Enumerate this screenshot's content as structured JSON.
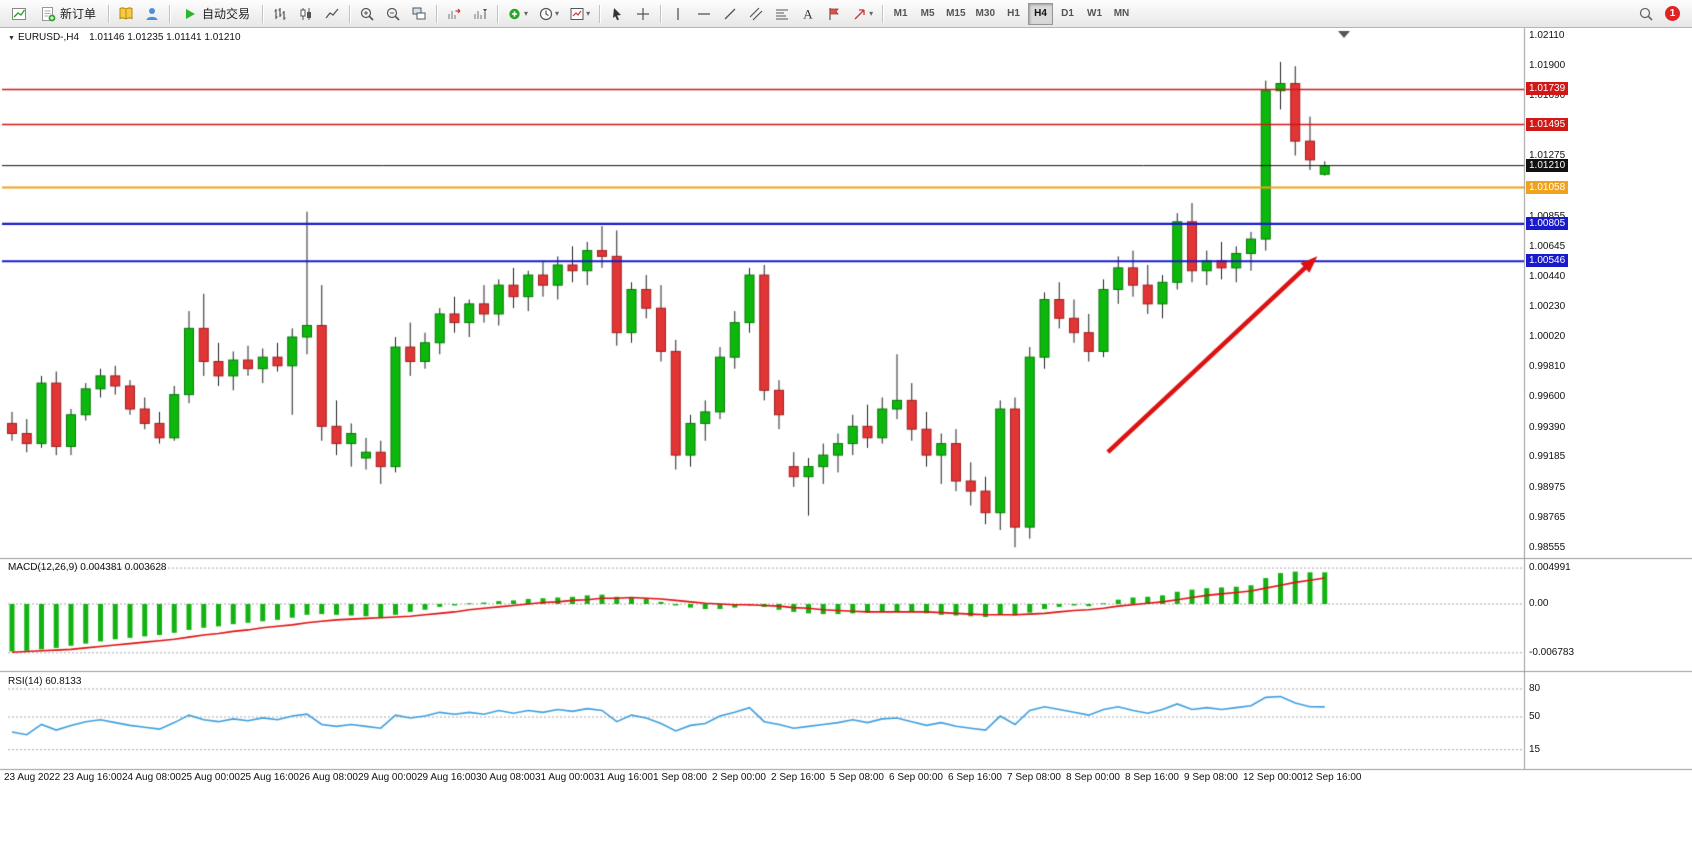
{
  "toolbar": {
    "new_order_label": "新订单",
    "auto_trading_label": "自动交易",
    "timeframes": [
      "M1",
      "M5",
      "M15",
      "M30",
      "H1",
      "H4",
      "D1",
      "W1",
      "MN"
    ],
    "active_timeframe": "H4",
    "notification_badge": "1",
    "icons": [
      "new-chart-icon",
      "new-order-icon",
      "book-icon",
      "user-icon",
      "autotrading-play-icon",
      "bar-chart-icon",
      "candle-chart-icon",
      "line-chart-icon",
      "zoom-in-icon",
      "zoom-out-icon",
      "tile-windows-icon",
      "auto-scroll-icon",
      "chart-shift-icon",
      "indicators-icon",
      "periods-icon",
      "template-icon",
      "cursor-icon",
      "crosshair-icon",
      "vertical-line-icon",
      "horizontal-line-icon",
      "trendline-icon",
      "channel-icon",
      "fibonacci-icon",
      "text-icon",
      "label-icon",
      "arrows-icon",
      "search-icon"
    ]
  },
  "chart": {
    "symbol_title": "EURUSD-,H4",
    "ohlc_text": "1.01146 1.01235 1.01141 1.01210",
    "price_range": {
      "top": 1.0211,
      "bottom": 0.98555
    },
    "y_ticks": [
      "1.02110",
      "1.01900",
      "1.01690",
      "1.01275",
      "1.00855",
      "1.00645",
      "1.00440",
      "1.00230",
      "1.00020",
      "0.99810",
      "0.99600",
      "0.99390",
      "0.99185",
      "0.98975",
      "0.98765",
      "0.98555"
    ],
    "price_lines": [
      {
        "price": 1.01739,
        "label": "1.01739",
        "color": "#d01818",
        "width": 1.4
      },
      {
        "price": 1.01495,
        "label": "1.01495",
        "color": "#d01818",
        "width": 1.4
      },
      {
        "price": 1.0121,
        "label": "1.01210",
        "color": "#111111",
        "width": 1
      },
      {
        "price": 1.01058,
        "label": "1.01058",
        "color": "#efa21b",
        "width": 2.2
      },
      {
        "price": 1.00805,
        "label": "1.00805",
        "color": "#1a1acd",
        "width": 2.2
      },
      {
        "price": 1.00546,
        "label": "1.00546",
        "color": "#1a1acd",
        "width": 2.2
      }
    ],
    "x_labels": [
      "23 Aug 2022",
      "23 Aug 16:00",
      "24 Aug 08:00",
      "25 Aug 00:00",
      "25 Aug 16:00",
      "26 Aug 08:00",
      "29 Aug 00:00",
      "29 Aug 16:00",
      "30 Aug 08:00",
      "31 Aug 00:00",
      "31 Aug 16:00",
      "1 Sep 08:00",
      "2 Sep 00:00",
      "2 Sep 16:00",
      "5 Sep 08:00",
      "6 Sep 00:00",
      "6 Sep 16:00",
      "7 Sep 08:00",
      "8 Sep 00:00",
      "8 Sep 16:00",
      "9 Sep 08:00",
      "12 Sep 00:00",
      "12 Sep 16:00"
    ]
  },
  "chart_data": {
    "type": "candlestick",
    "symbol": "EURUSD-",
    "timeframe": "H4",
    "candles": [
      [
        0.9942,
        0.995,
        0.993,
        0.9935
      ],
      [
        0.9935,
        0.9945,
        0.9922,
        0.9928
      ],
      [
        0.9928,
        0.9975,
        0.9925,
        0.997
      ],
      [
        0.997,
        0.9978,
        0.992,
        0.9926
      ],
      [
        0.9926,
        0.9952,
        0.992,
        0.9948
      ],
      [
        0.9948,
        0.997,
        0.9944,
        0.9966
      ],
      [
        0.9966,
        0.998,
        0.996,
        0.9975
      ],
      [
        0.9975,
        0.9982,
        0.9962,
        0.9968
      ],
      [
        0.9968,
        0.9972,
        0.9948,
        0.9952
      ],
      [
        0.9952,
        0.996,
        0.9938,
        0.9942
      ],
      [
        0.9942,
        0.995,
        0.9928,
        0.9932
      ],
      [
        0.9932,
        0.9968,
        0.993,
        0.9962
      ],
      [
        0.9962,
        1.002,
        0.9956,
        1.0008
      ],
      [
        1.0008,
        1.0032,
        0.9975,
        0.9985
      ],
      [
        0.9985,
        0.9998,
        0.9968,
        0.9975
      ],
      [
        0.9975,
        0.9992,
        0.9965,
        0.9986
      ],
      [
        0.9986,
        0.9996,
        0.9975,
        0.998
      ],
      [
        0.998,
        0.9994,
        0.997,
        0.9988
      ],
      [
        0.9988,
        0.9998,
        0.9978,
        0.9982
      ],
      [
        0.9982,
        1.0008,
        0.9948,
        1.0002
      ],
      [
        1.0002,
        1.0089,
        0.999,
        1.001
      ],
      [
        1.001,
        1.0038,
        0.993,
        0.994
      ],
      [
        0.994,
        0.9958,
        0.992,
        0.9928
      ],
      [
        0.9928,
        0.9942,
        0.9912,
        0.9935
      ],
      [
        0.9918,
        0.9932,
        0.991,
        0.9922
      ],
      [
        0.9922,
        0.993,
        0.99,
        0.9912
      ],
      [
        0.9912,
        1.0002,
        0.9908,
        0.9995
      ],
      [
        0.9995,
        1.0012,
        0.9975,
        0.9985
      ],
      [
        0.9985,
        1.0005,
        0.998,
        0.9998
      ],
      [
        0.9998,
        1.0022,
        0.999,
        1.0018
      ],
      [
        1.0018,
        1.003,
        1.0005,
        1.0012
      ],
      [
        1.0012,
        1.0028,
        1.0002,
        1.0025
      ],
      [
        1.0025,
        1.0038,
        1.0012,
        1.0018
      ],
      [
        1.0018,
        1.0042,
        1.001,
        1.0038
      ],
      [
        1.0038,
        1.005,
        1.0022,
        1.003
      ],
      [
        1.003,
        1.0048,
        1.002,
        1.0045
      ],
      [
        1.0045,
        1.0055,
        1.003,
        1.0038
      ],
      [
        1.0038,
        1.0058,
        1.0028,
        1.0052
      ],
      [
        1.0052,
        1.0065,
        1.004,
        1.0048
      ],
      [
        1.0048,
        1.0068,
        1.0038,
        1.0062
      ],
      [
        1.0062,
        1.0079,
        1.005,
        1.0058
      ],
      [
        1.0058,
        1.0076,
        0.9996,
        1.0005
      ],
      [
        1.0005,
        1.004,
        0.9998,
        1.0035
      ],
      [
        1.0035,
        1.0045,
        1.0015,
        1.0022
      ],
      [
        1.0022,
        1.0038,
        0.9985,
        0.9992
      ],
      [
        0.9992,
        1.0,
        0.991,
        0.992
      ],
      [
        0.992,
        0.9948,
        0.9912,
        0.9942
      ],
      [
        0.9942,
        0.9958,
        0.993,
        0.995
      ],
      [
        0.995,
        0.9995,
        0.9945,
        0.9988
      ],
      [
        0.9988,
        1.002,
        0.998,
        1.0012
      ],
      [
        1.0012,
        1.005,
        1.0005,
        1.0045
      ],
      [
        1.0045,
        1.0052,
        0.9958,
        0.9965
      ],
      [
        0.9965,
        0.9972,
        0.9938,
        0.9948
      ],
      [
        0.9912,
        0.9922,
        0.9898,
        0.9905
      ],
      [
        0.9905,
        0.9918,
        0.9878,
        0.9912
      ],
      [
        0.9912,
        0.9928,
        0.99,
        0.992
      ],
      [
        0.992,
        0.9935,
        0.9908,
        0.9928
      ],
      [
        0.9928,
        0.9948,
        0.992,
        0.994
      ],
      [
        0.994,
        0.9955,
        0.9925,
        0.9932
      ],
      [
        0.9932,
        0.996,
        0.9928,
        0.9952
      ],
      [
        0.9952,
        0.999,
        0.9945,
        0.9958
      ],
      [
        0.9958,
        0.997,
        0.993,
        0.9938
      ],
      [
        0.9938,
        0.995,
        0.9912,
        0.992
      ],
      [
        0.992,
        0.9935,
        0.99,
        0.9928
      ],
      [
        0.9928,
        0.9938,
        0.9895,
        0.9902
      ],
      [
        0.9902,
        0.9915,
        0.9885,
        0.9895
      ],
      [
        0.9895,
        0.9905,
        0.9872,
        0.988
      ],
      [
        0.988,
        0.9958,
        0.9868,
        0.9952
      ],
      [
        0.9952,
        0.996,
        0.9856,
        0.987
      ],
      [
        0.987,
        0.9995,
        0.9862,
        0.9988
      ],
      [
        0.9988,
        1.0033,
        0.998,
        1.0028
      ],
      [
        1.0028,
        1.004,
        1.0008,
        1.0015
      ],
      [
        1.0015,
        1.0028,
        0.9998,
        1.0005
      ],
      [
        1.0005,
        1.0018,
        0.9985,
        0.9992
      ],
      [
        0.9992,
        1.0042,
        0.9988,
        1.0035
      ],
      [
        1.0035,
        1.0058,
        1.0025,
        1.005
      ],
      [
        1.005,
        1.0062,
        1.003,
        1.0038
      ],
      [
        1.0038,
        1.0052,
        1.0018,
        1.0025
      ],
      [
        1.0025,
        1.0045,
        1.0015,
        1.004
      ],
      [
        1.004,
        1.0088,
        1.0035,
        1.0082
      ],
      [
        1.0082,
        1.0095,
        1.004,
        1.0048
      ],
      [
        1.0048,
        1.0062,
        1.0038,
        1.0055
      ],
      [
        1.0055,
        1.0068,
        1.0042,
        1.005
      ],
      [
        1.005,
        1.0065,
        1.004,
        1.006
      ],
      [
        1.006,
        1.0075,
        1.0048,
        1.007
      ],
      [
        1.007,
        1.018,
        1.0062,
        1.0173
      ],
      [
        1.0173,
        1.0193,
        1.016,
        1.0178
      ],
      [
        1.0178,
        1.019,
        1.0128,
        1.0138
      ],
      [
        1.0138,
        1.0155,
        1.0118,
        1.0125
      ],
      [
        1.0115,
        1.0124,
        1.0114,
        1.0121
      ]
    ],
    "macd": {
      "label": "MACD(12,26,9) 0.004381 0.003628",
      "ticks": [
        "0.004991",
        "0.00",
        "-0.006783"
      ],
      "tick_values": [
        0.004991,
        0,
        -0.006783
      ],
      "hist": [
        -0.0066,
        -0.0065,
        -0.0063,
        -0.0061,
        -0.0058,
        -0.0055,
        -0.0052,
        -0.0049,
        -0.0047,
        -0.0045,
        -0.0043,
        -0.004,
        -0.0036,
        -0.0033,
        -0.0031,
        -0.0028,
        -0.0026,
        -0.0024,
        -0.0022,
        -0.0019,
        -0.0015,
        -0.0014,
        -0.0015,
        -0.0016,
        -0.0017,
        -0.0018,
        -0.0015,
        -0.0011,
        -0.0008,
        -0.0004,
        -0.0002,
        0.0001,
        0.0002,
        0.0004,
        0.0005,
        0.0007,
        0.0008,
        0.0009,
        0.001,
        0.0012,
        0.0013,
        0.001,
        0.0009,
        0.0007,
        0.0003,
        -0.0002,
        -0.0005,
        -0.0007,
        -0.0007,
        -0.0005,
        -0.0002,
        -0.0004,
        -0.0008,
        -0.0011,
        -0.0013,
        -0.0014,
        -0.0014,
        -0.0013,
        -0.0012,
        -0.0011,
        -0.001,
        -0.0011,
        -0.0013,
        -0.0015,
        -0.0016,
        -0.0017,
        -0.0018,
        -0.0015,
        -0.0016,
        -0.0012,
        -0.0007,
        -0.0004,
        -0.0002,
        -0.0003,
        0.0001,
        0.0006,
        0.0009,
        0.001,
        0.0012,
        0.0017,
        0.002,
        0.0022,
        0.0023,
        0.0024,
        0.0026,
        0.0036,
        0.0043,
        0.0045,
        0.0044,
        0.0044
      ],
      "signal": [
        -0.0067,
        -0.0066,
        -0.0065,
        -0.0064,
        -0.0063,
        -0.0061,
        -0.0059,
        -0.0057,
        -0.0055,
        -0.0053,
        -0.0051,
        -0.0049,
        -0.0046,
        -0.0043,
        -0.0041,
        -0.0038,
        -0.0036,
        -0.0033,
        -0.0031,
        -0.0029,
        -0.0026,
        -0.0024,
        -0.0022,
        -0.0021,
        -0.002,
        -0.0019,
        -0.0018,
        -0.0017,
        -0.0015,
        -0.0013,
        -0.0011,
        -0.0008,
        -0.0006,
        -0.0004,
        -0.0002,
        0.0,
        0.0002,
        0.0003,
        0.0005,
        0.0006,
        0.0008,
        0.0008,
        0.0009,
        0.0008,
        0.0007,
        0.0005,
        0.0003,
        0.0001,
        0.0,
        -0.0001,
        -0.0001,
        -0.0002,
        -0.0003,
        -0.0005,
        -0.0006,
        -0.0008,
        -0.0009,
        -0.001,
        -0.0011,
        -0.0011,
        -0.0011,
        -0.0011,
        -0.0011,
        -0.0012,
        -0.0013,
        -0.0014,
        -0.0015,
        -0.0015,
        -0.0015,
        -0.0014,
        -0.0013,
        -0.0011,
        -0.0009,
        -0.0008,
        -0.0006,
        -0.0003,
        -0.0001,
        0.0001,
        0.0003,
        0.0006,
        0.0009,
        0.0012,
        0.0014,
        0.0016,
        0.0018,
        0.0022,
        0.0026,
        0.003,
        0.0033,
        0.0036
      ]
    },
    "rsi": {
      "label": "RSI(14) 60.8133",
      "levels": [
        80,
        50,
        15
      ],
      "tick_labels": [
        "80",
        "50",
        "15"
      ],
      "values": [
        34,
        31,
        42,
        36,
        41,
        45,
        47,
        44,
        41,
        39,
        37,
        44,
        52,
        47,
        45,
        48,
        46,
        49,
        47,
        51,
        53,
        42,
        40,
        42,
        40,
        38,
        52,
        49,
        51,
        55,
        53,
        55,
        53,
        57,
        54,
        57,
        55,
        58,
        56,
        59,
        57,
        45,
        52,
        49,
        43,
        35,
        41,
        43,
        51,
        55,
        60,
        45,
        42,
        38,
        40,
        42,
        44,
        47,
        44,
        48,
        49,
        45,
        41,
        44,
        40,
        38,
        36,
        51,
        42,
        57,
        61,
        58,
        55,
        52,
        58,
        61,
        57,
        54,
        58,
        64,
        58,
        60,
        58,
        60,
        62,
        71,
        72,
        65,
        61,
        60.8
      ]
    },
    "trend_arrow": {
      "from": {
        "index": 74.3,
        "price": 0.9922
      },
      "to": {
        "index": 88.5,
        "price": 1.0058
      },
      "color": "#dd1111"
    }
  }
}
